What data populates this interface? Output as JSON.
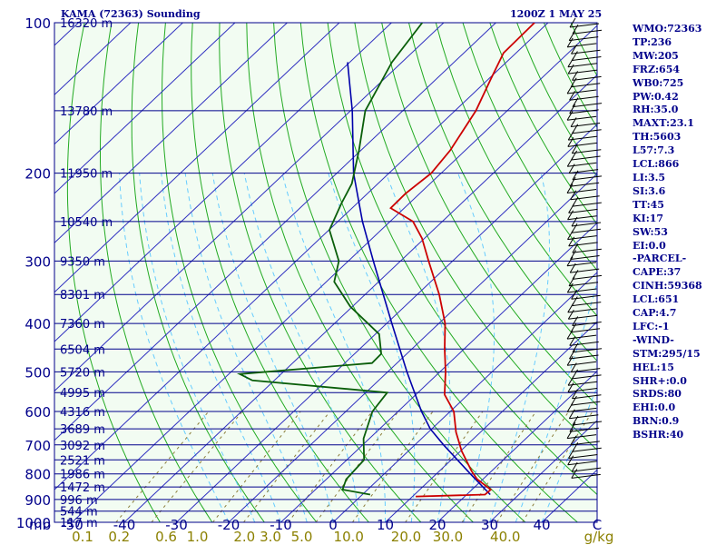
{
  "header": {
    "station_title": "KAMA (72363) Sounding",
    "valid_time": "1200Z  1 MAY 25"
  },
  "colors": {
    "plot_bg": "#f2fcf2",
    "isobar": "#00008b",
    "isotherm": "#2f2fc0",
    "dry_adiabat": "#22aa22",
    "moist_adiabat": "#66ccff",
    "mixing_ratio": "#8b7d3a",
    "temperature": "#cc0000",
    "dewpoint": "#0a5e0a",
    "parcel": "#0000aa",
    "labels": "#00008b",
    "mixing_labels": "#8b8000"
  },
  "index_panel": {
    "items": [
      "WMO:72363",
      "TP:236",
      "MW:205",
      "FRZ:654",
      "WB0:725",
      "PW:0.42",
      "RH:35.0",
      "MAXT:23.1",
      "TH:5603",
      "L57:7.3",
      "LCL:866",
      "LI:3.5",
      "SI:3.6",
      "TT:45",
      "KI:17",
      "SW:53",
      "EI:0.0",
      "-PARCEL-",
      "CAPE:37",
      "CINH:59368",
      "LCL:651",
      "CAP:4.7",
      "LFC:-1",
      "-WIND-",
      "STM:295/15",
      "HEL:15",
      "SHR+:0.0",
      "SRDS:80",
      "EHI:0.0",
      "BRN:0.9",
      "BSHR:40"
    ]
  },
  "chart_data": {
    "type": "skew-t",
    "xlabel_unit": "C",
    "mixing_ratio_unit": "g/kg",
    "pressure_axis_label": "mb",
    "pressure_range": [
      1000,
      100
    ],
    "temperature_range": [
      -50,
      50
    ],
    "pressure_levels": [
      {
        "p": 100,
        "label": "100",
        "height": "16320 m"
      },
      {
        "p": 150,
        "label": "",
        "height": "13780 m"
      },
      {
        "p": 200,
        "label": "200",
        "height": "11950 m"
      },
      {
        "p": 250,
        "label": "",
        "height": "10540 m"
      },
      {
        "p": 300,
        "label": "300",
        "height": "9350 m"
      },
      {
        "p": 350,
        "label": "",
        "height": "8301 m"
      },
      {
        "p": 400,
        "label": "400",
        "height": "7360 m"
      },
      {
        "p": 450,
        "label": "",
        "height": "6504 m"
      },
      {
        "p": 500,
        "label": "500",
        "height": "5720 m"
      },
      {
        "p": 550,
        "label": "",
        "height": "4995 m"
      },
      {
        "p": 600,
        "label": "600",
        "height": "4316 m"
      },
      {
        "p": 650,
        "label": "",
        "height": "3689 m"
      },
      {
        "p": 700,
        "label": "700",
        "height": "3092 m"
      },
      {
        "p": 750,
        "label": "",
        "height": "2521 m"
      },
      {
        "p": 800,
        "label": "800",
        "height": "1986 m"
      },
      {
        "p": 850,
        "label": "",
        "height": "1472 m"
      },
      {
        "p": 900,
        "label": "900",
        "height": "996 m"
      },
      {
        "p": 950,
        "label": "",
        "height": "544 m"
      },
      {
        "p": 1000,
        "label": "1000",
        "height": "117 m"
      }
    ],
    "temperature_ticks": [
      {
        "t": -50,
        "label": "-50"
      },
      {
        "t": -40,
        "label": "-40"
      },
      {
        "t": -30,
        "label": "-30"
      },
      {
        "t": -20,
        "label": "-20"
      },
      {
        "t": -10,
        "label": "-10"
      },
      {
        "t": 0,
        "label": "0"
      },
      {
        "t": 10,
        "label": "10"
      },
      {
        "t": 20,
        "label": "20"
      },
      {
        "t": 30,
        "label": "30"
      },
      {
        "t": 40,
        "label": "40"
      }
    ],
    "mixing_ratio_labels": [
      "0.1",
      "0.2",
      "0.6",
      "1.0",
      "2.0",
      "3.0",
      "5.0",
      "10.0",
      "20.0",
      "30.0",
      "40.0"
    ],
    "mixing_ratio_values": [
      0.1,
      0.2,
      0.6,
      1.0,
      2.0,
      3.0,
      5.0,
      10.0,
      20.0,
      30.0,
      40.0
    ],
    "mixing_ratio_label_temps": [
      -48,
      -41,
      -32,
      -26,
      -17,
      -12,
      -6,
      3,
      14,
      22,
      33
    ],
    "temperature_profile": [
      {
        "p": 888,
        "t": 10.6
      },
      {
        "p": 880,
        "t": 23.5
      },
      {
        "p": 860,
        "t": 23.6
      },
      {
        "p": 820,
        "t": 18.9
      },
      {
        "p": 790,
        "t": 16.2
      },
      {
        "p": 720,
        "t": 10.2
      },
      {
        "p": 660,
        "t": 5.3
      },
      {
        "p": 600,
        "t": 0.7
      },
      {
        "p": 555,
        "t": -4.5
      },
      {
        "p": 500,
        "t": -8.9
      },
      {
        "p": 450,
        "t": -13.7
      },
      {
        "p": 400,
        "t": -18.8
      },
      {
        "p": 350,
        "t": -25.8
      },
      {
        "p": 300,
        "t": -34.6
      },
      {
        "p": 270,
        "t": -40.5
      },
      {
        "p": 250,
        "t": -45.6
      },
      {
        "p": 235,
        "t": -52.6
      },
      {
        "p": 220,
        "t": -52.7
      },
      {
        "p": 200,
        "t": -51.9
      },
      {
        "p": 180,
        "t": -52.9
      },
      {
        "p": 150,
        "t": -56.0
      },
      {
        "p": 130,
        "t": -59.5
      },
      {
        "p": 115,
        "t": -62.4
      },
      {
        "p": 100,
        "t": -62.6
      }
    ],
    "dewpoint_profile": [
      {
        "p": 880,
        "t": 1.5
      },
      {
        "p": 860,
        "t": -4.8
      },
      {
        "p": 820,
        "t": -6.2
      },
      {
        "p": 750,
        "t": -6.7
      },
      {
        "p": 680,
        "t": -11.1
      },
      {
        "p": 600,
        "t": -14.9
      },
      {
        "p": 550,
        "t": -15.9
      },
      {
        "p": 520,
        "t": -44.2
      },
      {
        "p": 505,
        "t": -47.9
      },
      {
        "p": 480,
        "t": -24.8
      },
      {
        "p": 460,
        "t": -24.9
      },
      {
        "p": 420,
        "t": -29.3
      },
      {
        "p": 370,
        "t": -40.4
      },
      {
        "p": 330,
        "t": -48.5
      },
      {
        "p": 300,
        "t": -51.8
      },
      {
        "p": 260,
        "t": -59.9
      },
      {
        "p": 230,
        "t": -63.0
      },
      {
        "p": 210,
        "t": -65.0
      },
      {
        "p": 180,
        "t": -70.4
      },
      {
        "p": 150,
        "t": -77.2
      },
      {
        "p": 120,
        "t": -81.9
      },
      {
        "p": 100,
        "t": -84.1
      }
    ],
    "parcel_path": [
      {
        "p": 880,
        "t": 24.5
      },
      {
        "p": 800,
        "t": 16.5
      },
      {
        "p": 700,
        "t": 5.5
      },
      {
        "p": 650,
        "t": -0.3
      },
      {
        "p": 600,
        "t": -5.5
      },
      {
        "p": 500,
        "t": -16.3
      },
      {
        "p": 400,
        "t": -29.0
      },
      {
        "p": 300,
        "t": -45.2
      },
      {
        "p": 250,
        "t": -55.3
      },
      {
        "p": 200,
        "t": -66.8
      },
      {
        "p": 150,
        "t": -79.7
      },
      {
        "p": 120,
        "t": -90.4
      }
    ]
  }
}
